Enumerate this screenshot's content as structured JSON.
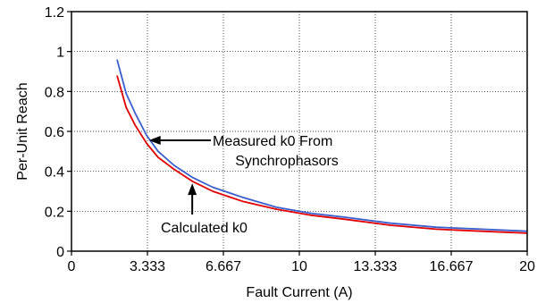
{
  "chart_data": {
    "type": "line",
    "title": "",
    "xlabel": "Fault Current (A)",
    "ylabel": "Per-Unit Reach",
    "xlim": [
      0,
      20
    ],
    "ylim": [
      0,
      1.2
    ],
    "x_ticks": [
      0,
      3.333,
      6.667,
      10,
      13.333,
      16.667,
      20
    ],
    "x_tick_labels": [
      "0",
      "3.333",
      "6.667",
      "10",
      "13.333",
      "16.667",
      "20"
    ],
    "y_ticks": [
      0,
      0.2,
      0.4,
      0.6,
      0.8,
      1,
      1.2
    ],
    "y_tick_labels": [
      "0",
      "0.2",
      "0.4",
      "0.6",
      "0.8",
      "1",
      "1.2"
    ],
    "grid": true,
    "series": [
      {
        "color": "#3a5fcd",
        "x": [
          2,
          2.4,
          2.8,
          3.3,
          3.8,
          4.5,
          5.3,
          6.2,
          7.5,
          9,
          10.5,
          12,
          14,
          16,
          18,
          20
        ],
        "y": [
          0.96,
          0.79,
          0.69,
          0.58,
          0.5,
          0.43,
          0.37,
          0.32,
          0.27,
          0.22,
          0.19,
          0.17,
          0.14,
          0.12,
          0.11,
          0.1
        ]
      },
      {
        "color": "#e00000",
        "x": [
          2,
          2.4,
          2.8,
          3.3,
          3.8,
          4.5,
          5.3,
          6.2,
          7.5,
          9,
          10.5,
          12,
          14,
          16,
          18,
          20
        ],
        "y": [
          0.88,
          0.72,
          0.63,
          0.54,
          0.47,
          0.41,
          0.35,
          0.3,
          0.25,
          0.21,
          0.18,
          0.16,
          0.13,
          0.11,
          0.1,
          0.09
        ]
      }
    ],
    "annotations": [
      {
        "line1": "Measured k0 From",
        "line2": "Synchrophasors",
        "arrow_to": {
          "x": 3.4,
          "y": 0.555
        }
      },
      {
        "line1": "Calculated k0",
        "arrow_to": {
          "x": 5.3,
          "y": 0.34
        }
      }
    ]
  }
}
